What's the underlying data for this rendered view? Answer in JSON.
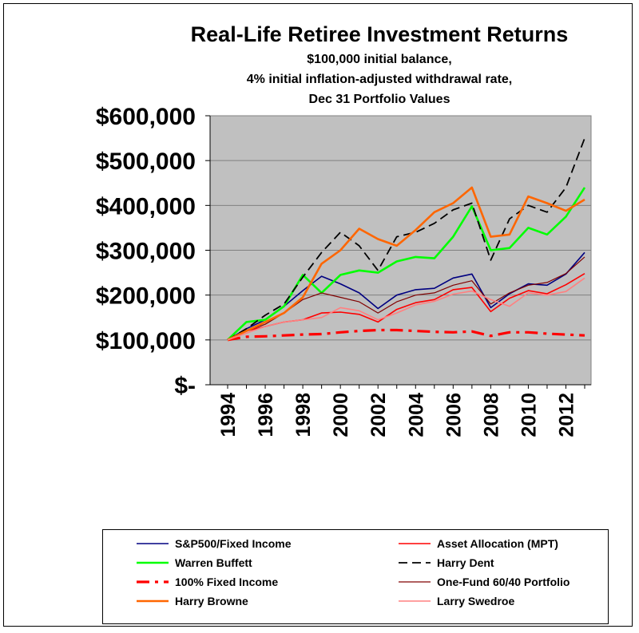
{
  "chart_data": {
    "type": "line",
    "title": "Real-Life Retiree Investment Returns",
    "subtitle": [
      "$100,000 initial balance,",
      "4% initial inflation-adjusted withdrawal rate,",
      "Dec 31 Portfolio Values"
    ],
    "xlabel": "",
    "ylabel": "",
    "x": [
      1994,
      1995,
      1996,
      1997,
      1998,
      1999,
      2000,
      2001,
      2002,
      2003,
      2004,
      2005,
      2006,
      2007,
      2008,
      2009,
      2010,
      2011,
      2012,
      2013
    ],
    "x_tick_labels": [
      "1994",
      "1996",
      "1998",
      "2000",
      "2002",
      "2004",
      "2006",
      "2008",
      "2010",
      "2012"
    ],
    "ylim": [
      0,
      600000
    ],
    "y_ticks": [
      0,
      100000,
      200000,
      300000,
      400000,
      500000,
      600000
    ],
    "y_tick_labels": [
      "$-",
      "$100,000",
      "$200,000",
      "$300,000",
      "$400,000",
      "$500,000",
      "$600,000"
    ],
    "grid": "horizontal",
    "legend_position": "bottom",
    "background_color": "#c0c0c0",
    "series": [
      {
        "name": "S&P500/Fixed Income",
        "color": "#000080",
        "dash": "solid",
        "width": 1.6,
        "values": [
          100000,
          125000,
          145000,
          175000,
          210000,
          242000,
          225000,
          205000,
          170000,
          200000,
          212000,
          215000,
          238000,
          247000,
          172000,
          203000,
          225000,
          222000,
          247000,
          295000
        ]
      },
      {
        "name": "Asset Allocation (MPT)",
        "color": "#ff0000",
        "dash": "solid",
        "width": 1.6,
        "values": [
          100000,
          120000,
          130000,
          140000,
          145000,
          160000,
          162000,
          157000,
          140000,
          168000,
          183000,
          190000,
          212000,
          217000,
          163000,
          193000,
          210000,
          203000,
          223000,
          248000
        ]
      },
      {
        "name": "Warren Buffett",
        "color": "#00ff00",
        "dash": "solid",
        "width": 2.6,
        "values": [
          100000,
          140000,
          145000,
          175000,
          245000,
          205000,
          245000,
          255000,
          250000,
          275000,
          285000,
          282000,
          330000,
          398000,
          300000,
          305000,
          350000,
          335000,
          375000,
          440000
        ]
      },
      {
        "name": "Harry Dent",
        "color": "#000000",
        "dash": "dashed",
        "width": 1.8,
        "values": [
          100000,
          125000,
          155000,
          180000,
          240000,
          295000,
          340000,
          310000,
          255000,
          330000,
          340000,
          360000,
          390000,
          405000,
          278000,
          370000,
          400000,
          385000,
          440000,
          550000
        ]
      },
      {
        "name": "100% Fixed Income",
        "color": "#ff0000",
        "dash": "dashdot",
        "width": 3.2,
        "values": [
          100000,
          107000,
          108000,
          110000,
          112000,
          113000,
          117000,
          120000,
          122000,
          122000,
          120000,
          118000,
          117000,
          119000,
          109000,
          117000,
          117000,
          114000,
          112000,
          110000
        ]
      },
      {
        "name": "One-Fund 60/40 Portfolio",
        "color": "#800000",
        "dash": "solid",
        "width": 1.2,
        "values": [
          100000,
          120000,
          135000,
          160000,
          190000,
          205000,
          195000,
          185000,
          160000,
          185000,
          200000,
          205000,
          222000,
          232000,
          180000,
          205000,
          222000,
          228000,
          248000,
          285000
        ]
      },
      {
        "name": "Harry Browne",
        "color": "#ff6600",
        "dash": "solid",
        "width": 2.6,
        "values": [
          100000,
          120000,
          140000,
          160000,
          195000,
          270000,
          300000,
          348000,
          325000,
          310000,
          345000,
          385000,
          405000,
          440000,
          330000,
          335000,
          420000,
          405000,
          388000,
          413000
        ]
      },
      {
        "name": "Larry Swedroe",
        "color": "#ff8080",
        "dash": "solid",
        "width": 1.6,
        "values": [
          100000,
          115000,
          130000,
          140000,
          145000,
          150000,
          172000,
          165000,
          145000,
          160000,
          178000,
          186000,
          202000,
          209000,
          190000,
          175000,
          205000,
          200000,
          208000,
          238000
        ]
      }
    ]
  }
}
